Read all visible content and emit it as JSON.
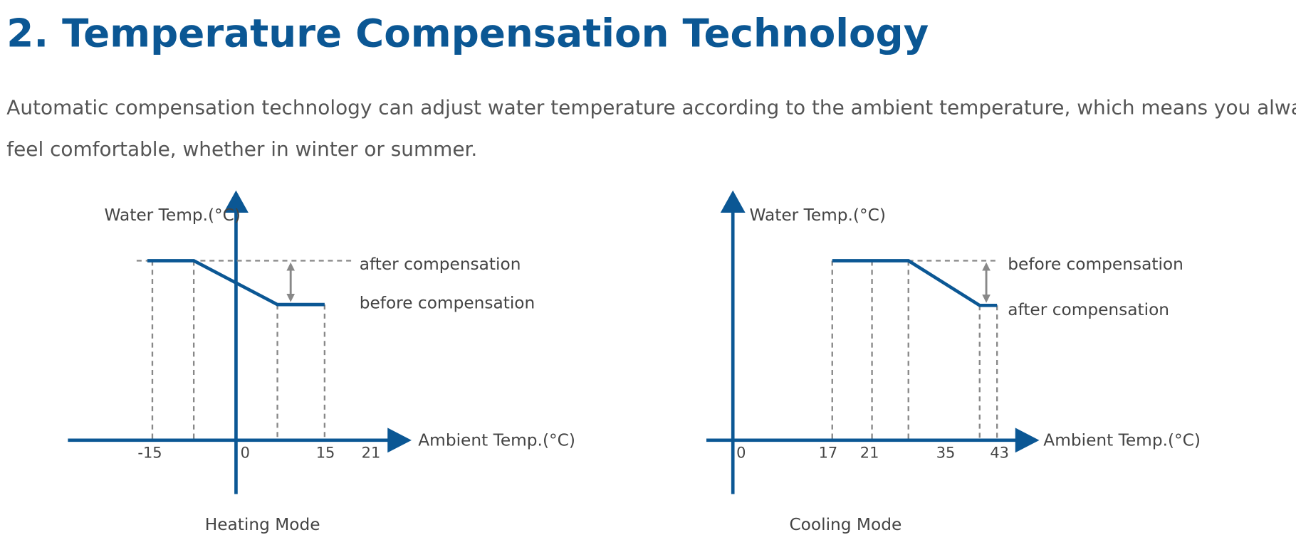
{
  "header": {
    "title": "2. Temperature Compensation Technology"
  },
  "intro": "Automatic compensation technology can adjust water temperature according to the ambient temperature, which means you always feel comfortable, whether in winter or summer.",
  "diagrams": [
    {
      "y_axis_label": "Water Temp.(°C)",
      "x_axis_label": "Ambient Temp.(°C)",
      "ticks": [
        "-15",
        "0",
        "15",
        "21"
      ],
      "upper_label": "after compensation",
      "lower_label": "before compensation",
      "caption": "Heating Mode"
    },
    {
      "y_axis_label": "Water Temp.(°C)",
      "x_axis_label": "Ambient Temp.(°C)",
      "ticks": [
        "0",
        "17",
        "21",
        "35",
        "43"
      ],
      "upper_label": "before compensation",
      "lower_label": "after compensation",
      "caption": "Cooling Mode"
    }
  ]
}
